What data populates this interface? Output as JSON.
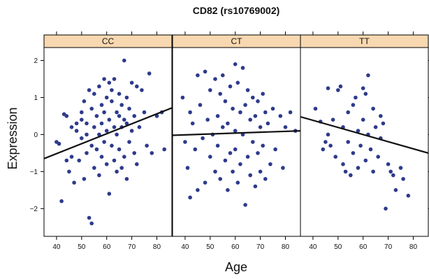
{
  "title": "CD82 (rs10769002)",
  "xlabel": "Age",
  "ylabel": "Expression",
  "colors": {
    "points": "#2e3a8c",
    "strip_bg": "#f8d8b0",
    "regression": "#111111",
    "panel_border": "#000000"
  },
  "chart_data": {
    "type": "scatter",
    "title": "CD82 (rs10769002)",
    "xlabel": "Age",
    "ylabel": "Expression",
    "xlim": [
      35,
      86
    ],
    "ylim": [
      -2.75,
      2.35
    ],
    "xticks": [
      40,
      50,
      60,
      70,
      80
    ],
    "yticks": [
      -2,
      -1,
      0,
      1,
      2
    ],
    "grid": false,
    "layout": "three panels side by side, strip labels on top, shared y axis",
    "panels": [
      {
        "name": "CC",
        "regression_line": [
          [
            35,
            -0.65
          ],
          [
            86,
            0.72
          ]
        ],
        "points": [
          [
            40,
            -0.2
          ],
          [
            41,
            -0.25
          ],
          [
            42,
            -1.8
          ],
          [
            43,
            0.55
          ],
          [
            44,
            0.5
          ],
          [
            44,
            -0.7
          ],
          [
            45,
            -1.0
          ],
          [
            46,
            0.2
          ],
          [
            46,
            -0.6
          ],
          [
            47,
            -1.3
          ],
          [
            48,
            0.1
          ],
          [
            48,
            0.3
          ],
          [
            49,
            -0.7
          ],
          [
            50,
            0.4
          ],
          [
            50,
            -0.1
          ],
          [
            50,
            0.6
          ],
          [
            51,
            -1.2
          ],
          [
            51,
            0.9
          ],
          [
            52,
            0.0
          ],
          [
            52,
            -0.5
          ],
          [
            52,
            0.3
          ],
          [
            53,
            -2.25
          ],
          [
            53,
            1.2
          ],
          [
            54,
            -2.4
          ],
          [
            54,
            -0.3
          ],
          [
            54,
            0.7
          ],
          [
            55,
            1.1
          ],
          [
            55,
            -0.9
          ],
          [
            55,
            0.2
          ],
          [
            56,
            0.5
          ],
          [
            56,
            -0.4
          ],
          [
            57,
            1.3
          ],
          [
            57,
            0.0
          ],
          [
            57,
            -1.1
          ],
          [
            58,
            0.8
          ],
          [
            58,
            -0.6
          ],
          [
            58,
            0.3
          ],
          [
            59,
            1.5
          ],
          [
            59,
            -0.2
          ],
          [
            59,
            0.6
          ],
          [
            60,
            1.0
          ],
          [
            60,
            -0.8
          ],
          [
            60,
            0.1
          ],
          [
            61,
            1.4
          ],
          [
            61,
            -1.6
          ],
          [
            61,
            0.4
          ],
          [
            62,
            0.9
          ],
          [
            62,
            -0.3
          ],
          [
            62,
            1.2
          ],
          [
            63,
            0.2
          ],
          [
            63,
            -0.7
          ],
          [
            63,
            1.5
          ],
          [
            64,
            0.6
          ],
          [
            64,
            -1.0
          ],
          [
            64,
            0.0
          ],
          [
            65,
            1.1
          ],
          [
            65,
            -0.4
          ],
          [
            65,
            0.5
          ],
          [
            66,
            0.8
          ],
          [
            66,
            -0.9
          ],
          [
            66,
            0.2
          ],
          [
            67,
            2.0
          ],
          [
            67,
            0.4
          ],
          [
            67,
            -0.6
          ],
          [
            68,
            1.0
          ],
          [
            68,
            -1.2
          ],
          [
            68,
            0.3
          ],
          [
            69,
            0.7
          ],
          [
            69,
            -0.2
          ],
          [
            70,
            1.4
          ],
          [
            70,
            0.1
          ],
          [
            71,
            0.5
          ],
          [
            71,
            -0.5
          ],
          [
            72,
            1.3
          ],
          [
            72,
            -0.8
          ],
          [
            73,
            0.2
          ],
          [
            74,
            1.2
          ],
          [
            75,
            0.6
          ],
          [
            76,
            -0.3
          ],
          [
            77,
            1.65
          ],
          [
            78,
            -0.5
          ],
          [
            80,
            0.5
          ],
          [
            82,
            0.6
          ],
          [
            83,
            -0.4
          ]
        ]
      },
      {
        "name": "CT",
        "regression_line": [
          [
            35,
            -0.02
          ],
          [
            86,
            0.1
          ]
        ],
        "points": [
          [
            39,
            1.0
          ],
          [
            40,
            -0.2
          ],
          [
            41,
            -0.9
          ],
          [
            42,
            0.6
          ],
          [
            42,
            -1.7
          ],
          [
            43,
            0.3
          ],
          [
            44,
            -0.4
          ],
          [
            45,
            1.6
          ],
          [
            45,
            -1.5
          ],
          [
            46,
            0.8
          ],
          [
            47,
            -0.1
          ],
          [
            48,
            1.7
          ],
          [
            48,
            -1.3
          ],
          [
            49,
            0.4
          ],
          [
            50,
            -0.6
          ],
          [
            50,
            1.2
          ],
          [
            51,
            0.0
          ],
          [
            52,
            -1.0
          ],
          [
            52,
            1.5
          ],
          [
            53,
            0.5
          ],
          [
            53,
            -0.3
          ],
          [
            54,
            1.1
          ],
          [
            54,
            -1.2
          ],
          [
            55,
            0.2
          ],
          [
            55,
            1.6
          ],
          [
            56,
            -0.7
          ],
          [
            56,
            0.9
          ],
          [
            57,
            -1.5
          ],
          [
            57,
            0.3
          ],
          [
            58,
            1.3
          ],
          [
            58,
            -0.5
          ],
          [
            59,
            0.7
          ],
          [
            59,
            -1.0
          ],
          [
            60,
            1.9
          ],
          [
            60,
            0.1
          ],
          [
            60,
            -0.4
          ],
          [
            61,
            1.4
          ],
          [
            61,
            -1.3
          ],
          [
            62,
            0.6
          ],
          [
            62,
            -0.8
          ],
          [
            63,
            1.8
          ],
          [
            63,
            0.0
          ],
          [
            64,
            -1.9
          ],
          [
            64,
            0.8
          ],
          [
            65,
            1.2
          ],
          [
            65,
            -0.6
          ],
          [
            66,
            0.4
          ],
          [
            66,
            -1.1
          ],
          [
            67,
            1.0
          ],
          [
            67,
            -0.2
          ],
          [
            68,
            0.5
          ],
          [
            68,
            -1.4
          ],
          [
            69,
            0.9
          ],
          [
            69,
            -0.5
          ],
          [
            70,
            0.2
          ],
          [
            70,
            -1.0
          ],
          [
            71,
            1.1
          ],
          [
            71,
            -0.3
          ],
          [
            72,
            0.6
          ],
          [
            72,
            -1.2
          ],
          [
            73,
            0.3
          ],
          [
            74,
            -0.8
          ],
          [
            75,
            0.7
          ],
          [
            76,
            -0.4
          ],
          [
            78,
            0.5
          ],
          [
            79,
            -0.9
          ],
          [
            80,
            0.2
          ],
          [
            82,
            0.6
          ],
          [
            84,
            0.1
          ]
        ]
      },
      {
        "name": "TT",
        "regression_line": [
          [
            35,
            0.48
          ],
          [
            86,
            -0.5
          ]
        ],
        "points": [
          [
            41,
            0.7
          ],
          [
            43,
            0.35
          ],
          [
            44,
            -0.4
          ],
          [
            45,
            -0.2
          ],
          [
            46,
            1.25
          ],
          [
            46,
            0.0
          ],
          [
            47,
            -0.3
          ],
          [
            48,
            0.4
          ],
          [
            49,
            -0.6
          ],
          [
            50,
            1.2
          ],
          [
            51,
            1.3
          ],
          [
            52,
            0.2
          ],
          [
            52,
            -0.8
          ],
          [
            53,
            -1.0
          ],
          [
            54,
            0.6
          ],
          [
            54,
            -0.2
          ],
          [
            55,
            -1.1
          ],
          [
            56,
            0.8
          ],
          [
            56,
            -0.5
          ],
          [
            57,
            1.0
          ],
          [
            58,
            0.1
          ],
          [
            58,
            -0.9
          ],
          [
            59,
            -0.3
          ],
          [
            60,
            1.25
          ],
          [
            60,
            0.4
          ],
          [
            61,
            1.1
          ],
          [
            61,
            -0.7
          ],
          [
            62,
            1.6
          ],
          [
            62,
            0.0
          ],
          [
            63,
            -0.4
          ],
          [
            64,
            0.7
          ],
          [
            64,
            -1.0
          ],
          [
            65,
            0.2
          ],
          [
            66,
            -0.6
          ],
          [
            67,
            0.5
          ],
          [
            67,
            -0.1
          ],
          [
            68,
            0.3
          ],
          [
            69,
            -2.0
          ],
          [
            70,
            -0.8
          ],
          [
            71,
            -1.0
          ],
          [
            72,
            -1.1
          ],
          [
            73,
            -1.5
          ],
          [
            75,
            -0.9
          ],
          [
            76,
            -1.2
          ],
          [
            78,
            -1.65
          ]
        ]
      }
    ]
  }
}
